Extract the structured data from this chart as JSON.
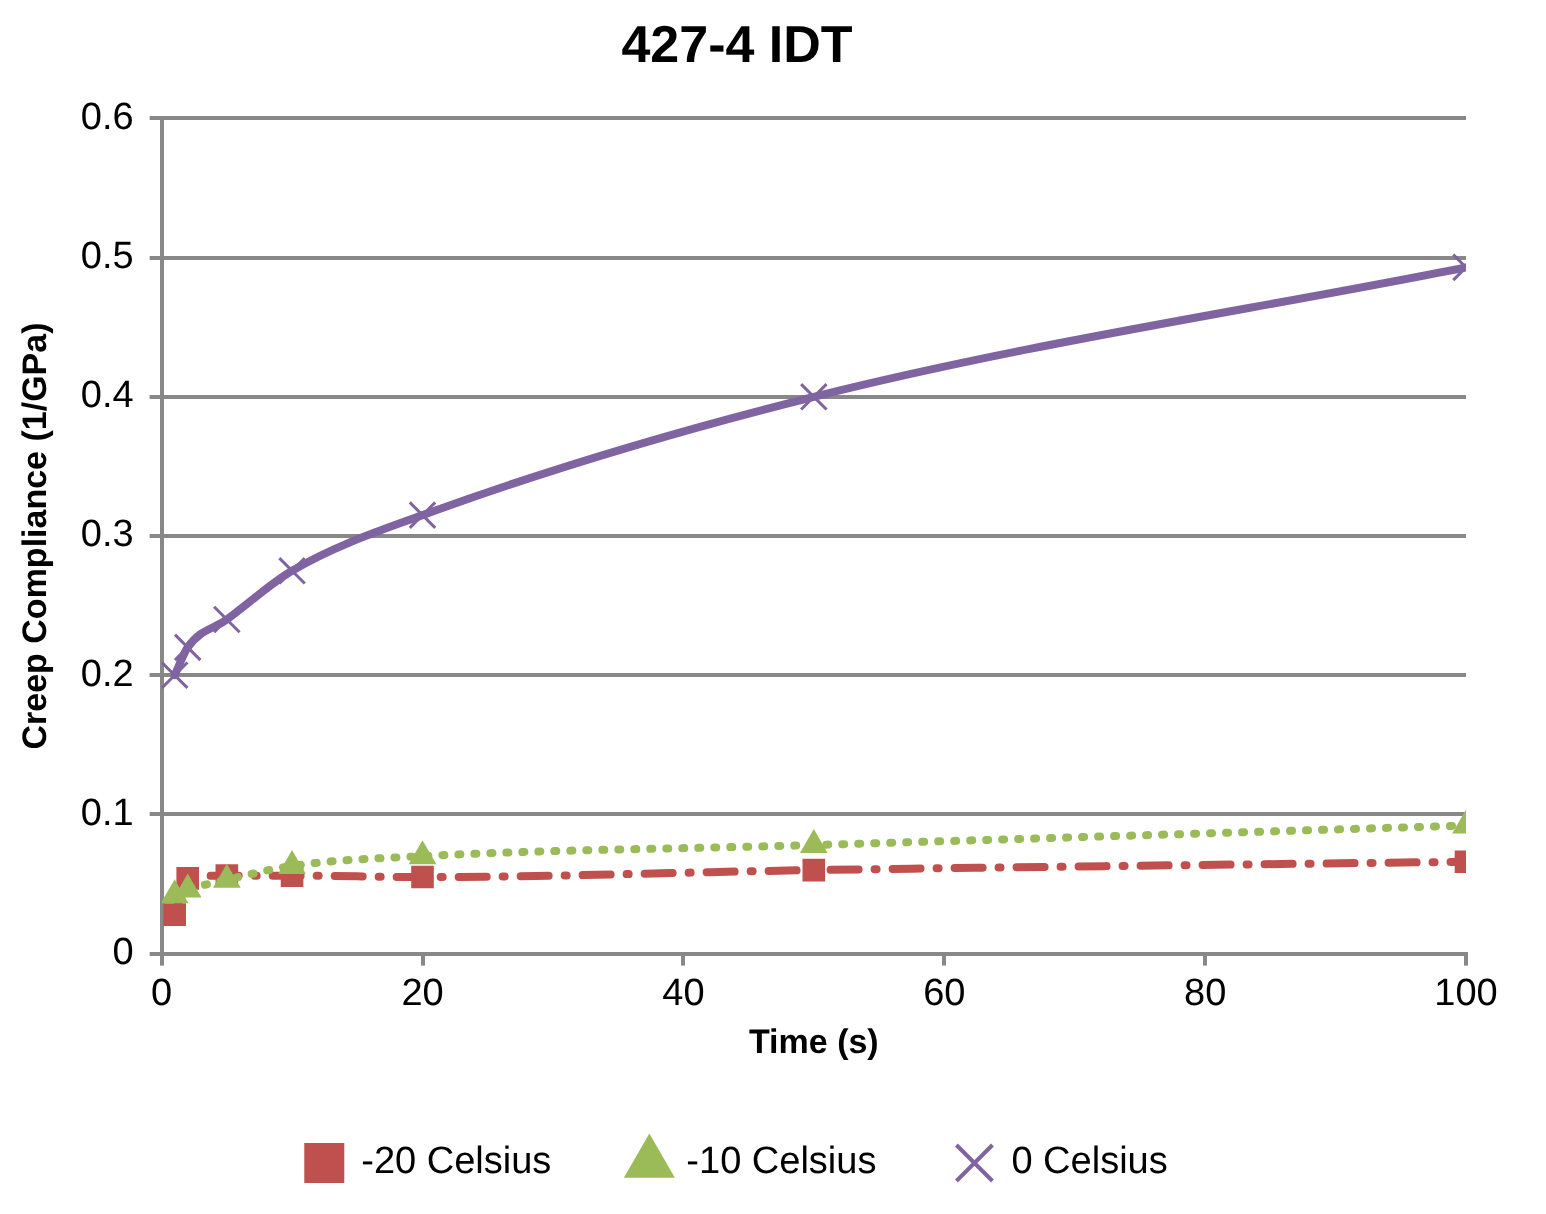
{
  "chart_data": {
    "type": "line",
    "title": "427-4 IDT",
    "xlabel": "Time (s)",
    "ylabel": "Creep Compliance (1/GPa)",
    "x": [
      1,
      2,
      5,
      10,
      20,
      50,
      100
    ],
    "series": [
      {
        "name": "-20 Celsius",
        "color": "#c0504d",
        "values": [
          0.028,
          0.054,
          0.056,
          0.056,
          0.055,
          0.06,
          0.066
        ],
        "marker": "square",
        "line_style": "dashdot"
      },
      {
        "name": "-10 Celsius",
        "color": "#9bbb59",
        "values": [
          0.042,
          0.046,
          0.053,
          0.063,
          0.07,
          0.078,
          0.092
        ],
        "marker": "triangle",
        "line_style": "dotted"
      },
      {
        "name": "0 Celsius",
        "color": "#8064a2",
        "values": [
          0.2,
          0.22,
          0.24,
          0.275,
          0.315,
          0.4,
          0.493
        ],
        "marker": "cross",
        "line_style": "solid"
      }
    ],
    "xlim": [
      0,
      100
    ],
    "xticks": [
      0,
      20,
      40,
      60,
      80,
      100
    ],
    "ylim": [
      0,
      0.6
    ],
    "yticks": [
      0,
      0.1,
      0.2,
      0.3,
      0.4,
      0.5,
      0.6
    ],
    "grid": "y",
    "legend": "bottom"
  }
}
